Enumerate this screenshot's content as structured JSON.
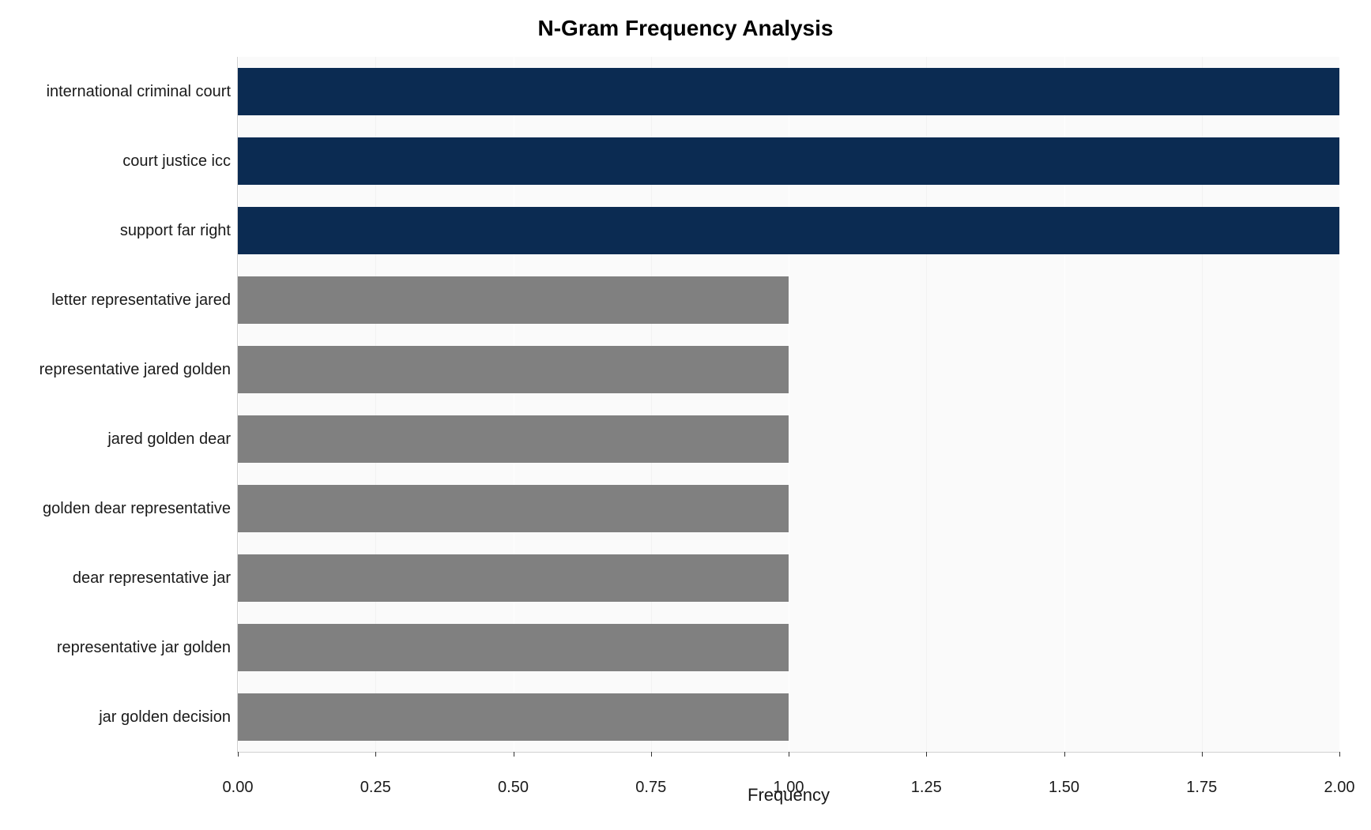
{
  "chart": {
    "type": "bar-horizontal",
    "title": "N-Gram Frequency Analysis",
    "title_fontsize": 28,
    "xlabel": "Frequency",
    "xlabel_fontsize": 22,
    "xlim": [
      0,
      2
    ],
    "xtick_step": 0.25,
    "xtick_labels": [
      "0.00",
      "0.25",
      "0.50",
      "0.75",
      "1.00",
      "1.25",
      "1.50",
      "1.75",
      "2.00"
    ],
    "ytick_fontsize": 20,
    "xtick_fontsize": 20,
    "background_color": "#fafafa",
    "gridline_major_color": "#ffffff",
    "gridline_minor_color": "#f2f2f2",
    "bar_gap_ratio": 0.32,
    "categories": [
      "international criminal court",
      "court justice icc",
      "support far right",
      "letter representative jared",
      "representative jared golden",
      "jared golden dear",
      "golden dear representative",
      "dear representative jar",
      "representative jar golden",
      "jar golden decision"
    ],
    "values": [
      2,
      2,
      2,
      1,
      1,
      1,
      1,
      1,
      1,
      1
    ],
    "bar_colors": [
      "#0b2b52",
      "#0b2b52",
      "#0b2b52",
      "#808080",
      "#808080",
      "#808080",
      "#808080",
      "#808080",
      "#808080",
      "#808080"
    ]
  }
}
